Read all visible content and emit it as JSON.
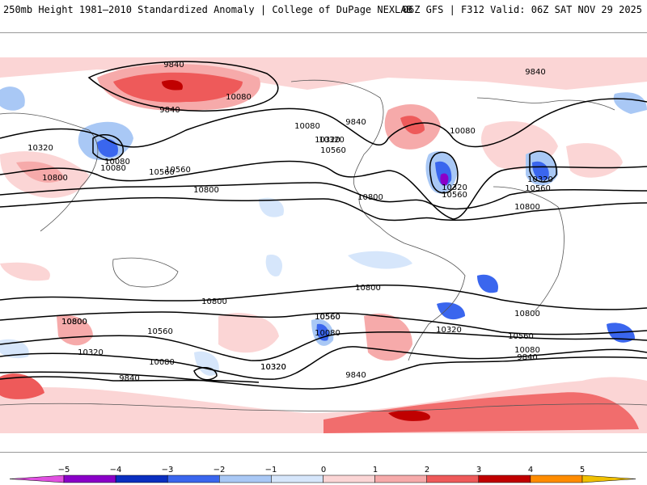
{
  "header": {
    "title": "250mb Height 1981–2010 Standardized Anomaly | College of DuPage NEXLAB",
    "run": "06Z GFS | F312 Valid: 06Z SAT NOV 29 2025"
  },
  "map": {
    "field": "250mb geopotential height",
    "contour_labels": [
      "9840",
      "10080",
      "9840",
      "10080",
      "10320",
      "10560",
      "10800",
      "10320",
      "10080",
      "9840",
      "10080",
      "10560",
      "10320",
      "10560",
      "10800",
      "10320",
      "10560",
      "10800",
      "10080",
      "9840",
      "10320",
      "10560",
      "10800",
      "10800",
      "10800",
      "10800",
      "10560",
      "10320",
      "10080",
      "10560",
      "10800",
      "10320",
      "10560",
      "10320",
      "10080",
      "9840",
      "9840",
      "9840",
      "10080",
      "10320",
      "10560",
      "10800"
    ],
    "colors": {
      "neg_extreme": "#e050e0",
      "neg_5_4": "#8a00c8",
      "neg_4_3": "#0a2fc0",
      "neg_3_2": "#3a66ee",
      "neg_2_1": "#a9c8f5",
      "neg_1_0": "#d6e6fb",
      "pos_0_1": "#fbd5d5",
      "pos_1_2": "#f6aaaa",
      "pos_2_3": "#ee5a5a",
      "pos_3_4": "#c00000",
      "pos_4_5": "#ff8c00",
      "pos_extreme": "#f0c000"
    }
  },
  "colorbar": {
    "ticks": [
      "−5",
      "−4",
      "−3",
      "−2",
      "−1",
      "0",
      "1",
      "2",
      "3",
      "4",
      "5"
    ],
    "tick_values": [
      -5,
      -4,
      -3,
      -2,
      -1,
      0,
      1,
      2,
      3,
      4,
      5
    ]
  }
}
